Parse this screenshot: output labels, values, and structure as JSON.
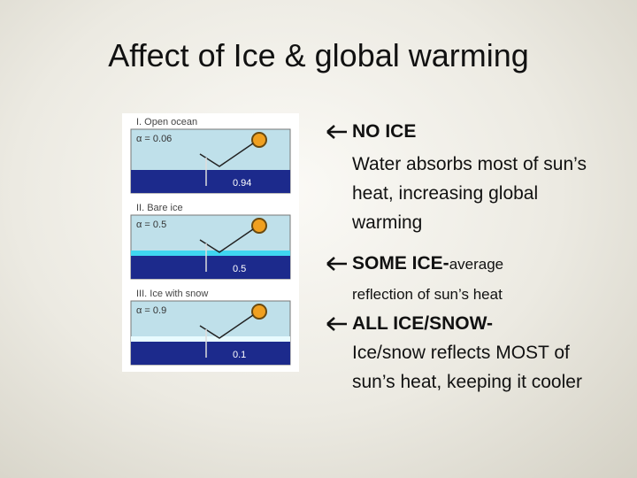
{
  "title": "Affect of Ice & global warming",
  "figure": {
    "panels": [
      {
        "label": "I. Open ocean",
        "albedo": "α = 0.06",
        "absorbed": "0.94"
      },
      {
        "label": "II. Bare ice",
        "albedo": "α = 0.5",
        "absorbed": "0.5"
      },
      {
        "label": "III. Ice with snow",
        "albedo": "α = 0.9",
        "absorbed": "0.1"
      }
    ]
  },
  "bullets": [
    {
      "heading": "NO ICE",
      "text": "Water absorbs most of sun’s heat, increasing global warming"
    },
    {
      "heading": "SOME ICE-",
      "text": "average reflection of sun’s heat"
    },
    {
      "heading": "ALL ICE/SNOW-",
      "text": "Ice/snow reflects MOST of sun’s heat, keeping it cooler"
    }
  ]
}
